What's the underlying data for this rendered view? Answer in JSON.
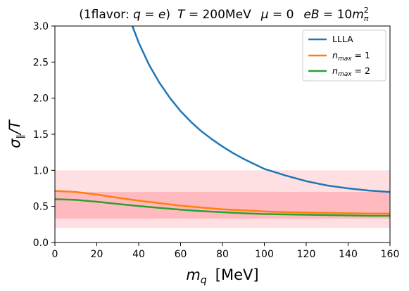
{
  "chart_data": {
    "type": "line",
    "title": "(1flavor: q = e)  T = 200MeV   μ = 0   eB = 10m²π",
    "title_parts": {
      "flavor_prefix": "(1flavor: ",
      "q": "q",
      "q_eq": " = ",
      "q_val": "e",
      "flavor_suffix": ")",
      "T": "T",
      "T_val": " = 200MeV",
      "mu": "μ",
      "mu_val": " = 0",
      "eB": "eB",
      "eB_eq": " = 10",
      "m": "m",
      "m_sup": "2",
      "m_sub": "π"
    },
    "xlabel": {
      "main": "m",
      "sub": "q",
      "unit": "[MeV]"
    },
    "ylabel": {
      "main": "σ",
      "sub": "∥",
      "rest": "/T"
    },
    "xlim": [
      0,
      160
    ],
    "ylim": [
      0,
      3.0
    ],
    "xticks": [
      {
        "value": 0,
        "label": "0"
      },
      {
        "value": 20,
        "label": "20"
      },
      {
        "value": 40,
        "label": "40"
      },
      {
        "value": 60,
        "label": "60"
      },
      {
        "value": 80,
        "label": "80"
      },
      {
        "value": 100,
        "label": "100"
      },
      {
        "value": 120,
        "label": "120"
      },
      {
        "value": 140,
        "label": "140"
      },
      {
        "value": 160,
        "label": "160"
      }
    ],
    "yticks": [
      {
        "value": 0,
        "label": "0.0"
      },
      {
        "value": 0.5,
        "label": "0.5"
      },
      {
        "value": 1.0,
        "label": "1.0"
      },
      {
        "value": 1.5,
        "label": "1.5"
      },
      {
        "value": 2.0,
        "label": "2.0"
      },
      {
        "value": 2.5,
        "label": "2.5"
      },
      {
        "value": 3.0,
        "label": "3.0"
      }
    ],
    "grid": false,
    "legend_position": "top-right",
    "bands": [
      {
        "y": [
          0.2,
          1.0
        ],
        "color": "#ffcccf",
        "opacity": 0.6
      },
      {
        "y": [
          0.33,
          0.7
        ],
        "color": "#ff8c96",
        "opacity": 0.45
      }
    ],
    "series": [
      {
        "name_parts": {
          "main": "LLLA",
          "sub": "",
          "rest": ""
        },
        "color": "#1f77b4",
        "points": [
          [
            37.0,
            3.0
          ],
          [
            40,
            2.77
          ],
          [
            45,
            2.46
          ],
          [
            50,
            2.21
          ],
          [
            55,
            2.0
          ],
          [
            60,
            1.82
          ],
          [
            65,
            1.67
          ],
          [
            70,
            1.54
          ],
          [
            75,
            1.43
          ],
          [
            80,
            1.33
          ],
          [
            85,
            1.24
          ],
          [
            90,
            1.16
          ],
          [
            95,
            1.09
          ],
          [
            100,
            1.02
          ],
          [
            110,
            0.93
          ],
          [
            120,
            0.85
          ],
          [
            130,
            0.79
          ],
          [
            140,
            0.75
          ],
          [
            150,
            0.72
          ],
          [
            160,
            0.7
          ]
        ]
      },
      {
        "name_parts": {
          "main": "n",
          "sub": "max",
          "rest": " = 1"
        },
        "color": "#ff7f0e",
        "points": [
          [
            0,
            0.715
          ],
          [
            10,
            0.7
          ],
          [
            20,
            0.665
          ],
          [
            30,
            0.62
          ],
          [
            40,
            0.58
          ],
          [
            50,
            0.545
          ],
          [
            60,
            0.51
          ],
          [
            70,
            0.485
          ],
          [
            80,
            0.46
          ],
          [
            90,
            0.445
          ],
          [
            100,
            0.43
          ],
          [
            110,
            0.42
          ],
          [
            120,
            0.415
          ],
          [
            130,
            0.41
          ],
          [
            140,
            0.405
          ],
          [
            150,
            0.4
          ],
          [
            160,
            0.4
          ]
        ]
      },
      {
        "name_parts": {
          "main": "n",
          "sub": "max",
          "rest": " = 2"
        },
        "color": "#2ca02c",
        "points": [
          [
            0,
            0.6
          ],
          [
            10,
            0.59
          ],
          [
            20,
            0.565
          ],
          [
            30,
            0.535
          ],
          [
            40,
            0.505
          ],
          [
            50,
            0.48
          ],
          [
            60,
            0.455
          ],
          [
            70,
            0.435
          ],
          [
            80,
            0.42
          ],
          [
            90,
            0.405
          ],
          [
            100,
            0.395
          ],
          [
            110,
            0.39
          ],
          [
            120,
            0.385
          ],
          [
            130,
            0.38
          ],
          [
            140,
            0.375
          ],
          [
            150,
            0.37
          ],
          [
            160,
            0.37
          ]
        ]
      }
    ]
  }
}
